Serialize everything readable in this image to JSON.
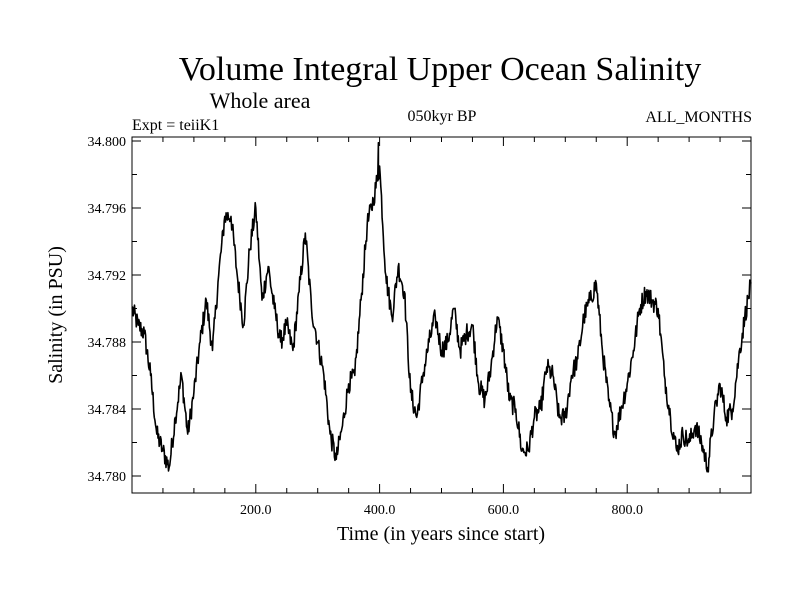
{
  "chart_data": {
    "type": "line",
    "title": "Volume Integral Upper Ocean Salinity",
    "subtitle": "Whole area",
    "annotations": {
      "left": "Expt = teiiK1",
      "center": "050kyr BP",
      "right": "ALL_MONTHS"
    },
    "xlabel": "Time (in years since start)",
    "ylabel": "Salinity (in PSU)",
    "xlim": [
      0,
      1000
    ],
    "ylim": [
      34.779,
      34.8
    ],
    "x_ticks": [
      200,
      400,
      600,
      800
    ],
    "x_tick_labels": [
      "200.0",
      "400.0",
      "600.0",
      "800.0"
    ],
    "y_ticks": [
      34.78,
      34.784,
      34.788,
      34.792,
      34.796,
      34.8
    ],
    "y_tick_labels": [
      "34.780",
      "34.784",
      "34.788",
      "34.792",
      "34.796",
      "34.800"
    ],
    "grid": false,
    "line_color": "#000000",
    "series": [
      {
        "x": [
          0,
          10,
          20,
          30,
          40,
          50,
          60,
          70,
          80,
          90,
          100,
          110,
          120,
          130,
          140,
          150,
          160,
          170,
          180,
          190,
          200,
          210,
          220,
          230,
          240,
          250,
          260,
          270,
          280,
          290,
          300,
          310,
          320,
          330,
          340,
          350,
          360,
          370,
          380,
          390,
          400,
          410,
          420,
          430,
          440,
          450,
          460,
          470,
          480,
          490,
          500,
          510,
          520,
          530,
          540,
          550,
          560,
          570,
          580,
          590,
          600,
          610,
          620,
          630,
          640,
          650,
          660,
          670,
          680,
          690,
          700,
          710,
          720,
          730,
          740,
          750,
          760,
          770,
          780,
          790,
          800,
          810,
          820,
          830,
          840,
          850,
          860,
          870,
          880,
          890,
          900,
          910,
          920,
          930,
          940,
          950,
          960,
          970,
          980,
          990,
          1000
        ],
        "values": [
          34.79,
          34.789,
          34.7885,
          34.786,
          34.7825,
          34.7815,
          34.7805,
          34.7835,
          34.786,
          34.7825,
          34.785,
          34.788,
          34.7905,
          34.7875,
          34.792,
          34.7955,
          34.7955,
          34.792,
          34.789,
          34.7935,
          34.796,
          34.7905,
          34.7925,
          34.79,
          34.788,
          34.789,
          34.7875,
          34.791,
          34.7945,
          34.79,
          34.788,
          34.786,
          34.7825,
          34.781,
          34.783,
          34.7855,
          34.786,
          34.7905,
          34.795,
          34.7965,
          34.7985,
          34.792,
          34.7895,
          34.7925,
          34.791,
          34.785,
          34.7835,
          34.786,
          34.788,
          34.7895,
          34.7875,
          34.788,
          34.79,
          34.7875,
          34.7885,
          34.789,
          34.7855,
          34.7845,
          34.7865,
          34.7895,
          34.7875,
          34.7845,
          34.784,
          34.7815,
          34.7815,
          34.7835,
          34.784,
          34.7865,
          34.786,
          34.7835,
          34.7835,
          34.786,
          34.787,
          34.7895,
          34.7905,
          34.7915,
          34.7875,
          34.7845,
          34.7825,
          34.784,
          34.7855,
          34.7875,
          34.79,
          34.791,
          34.7905,
          34.79,
          34.786,
          34.7835,
          34.7815,
          34.7825,
          34.782,
          34.783,
          34.782,
          34.7805,
          34.7835,
          34.7855,
          34.7835,
          34.784,
          34.787,
          34.7895,
          34.7915
        ],
        "peak": {
          "x": 398,
          "value": 34.7999
        }
      }
    ]
  }
}
